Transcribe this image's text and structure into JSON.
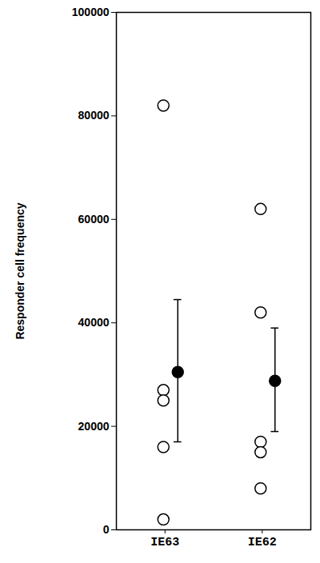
{
  "chart_data": {
    "type": "dot",
    "ylabel": "Responder cell frequency",
    "categories": [
      "IE63",
      "IE62"
    ],
    "values": [
      [
        82000,
        27000,
        25000,
        16000,
        2000
      ],
      [
        62000,
        42000,
        17000,
        15000,
        8000
      ]
    ],
    "means": [
      30500,
      28800
    ],
    "error_bars": [
      [
        17000,
        44500
      ],
      [
        19000,
        39000
      ]
    ],
    "color": "#000000",
    "marker": "circle",
    "ylim": [
      0,
      100000
    ],
    "yticks": [
      0,
      20000,
      40000,
      60000,
      80000,
      100000
    ],
    "grid": false
  }
}
